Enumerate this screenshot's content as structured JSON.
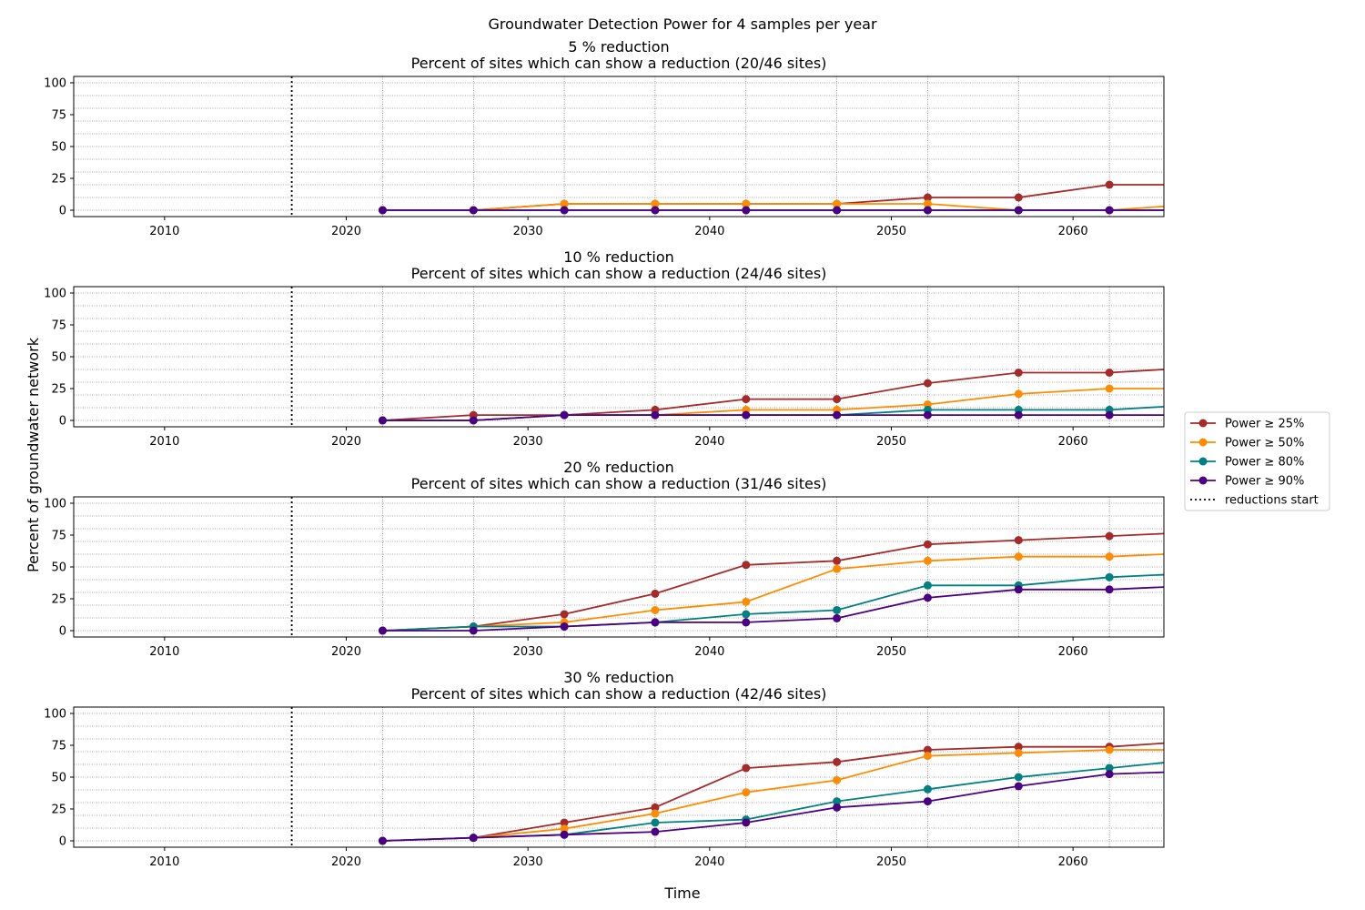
{
  "chart_data": {
    "type": "line",
    "title": "Groundwater Detection Power for 4 samples per year",
    "xlabel": "Time",
    "ylabel": "Percent of groundwater network",
    "xlim": [
      2005,
      2065
    ],
    "ylim": [
      -5,
      105
    ],
    "xticks": [
      2010,
      2020,
      2030,
      2040,
      2050,
      2060
    ],
    "yticks": [
      0,
      25,
      50,
      75,
      100
    ],
    "grid": true,
    "legend_placement": "center-right",
    "reductions_start": 2017,
    "x": [
      2022,
      2027,
      2032,
      2037,
      2042,
      2047,
      2052,
      2057,
      2062,
      2067
    ],
    "series_styles": [
      {
        "key": "p25",
        "name": "Power ≥ 25%",
        "color": "#a52a2a"
      },
      {
        "key": "p50",
        "name": "Power ≥ 50%",
        "color": "#ff8c00"
      },
      {
        "key": "p80",
        "name": "Power ≥ 80%",
        "color": "#008080"
      },
      {
        "key": "p90",
        "name": "Power ≥ 90%",
        "color": "#4b0082"
      }
    ],
    "reductions_legend": "reductions start",
    "panels": [
      {
        "title": "5 % reduction",
        "subtitle": "Percent of sites which can show a reduction (20/46 sites)",
        "series": {
          "p25": [
            0,
            0,
            5,
            5,
            5,
            5,
            10,
            10,
            20,
            20
          ],
          "p50": [
            0,
            0,
            5,
            5,
            5,
            5,
            5,
            0,
            0,
            5
          ],
          "p80": [
            0,
            0,
            0,
            0,
            0,
            0,
            0,
            0,
            0,
            0
          ],
          "p90": [
            0,
            0,
            0,
            0,
            0,
            0,
            0,
            0,
            0,
            0
          ]
        }
      },
      {
        "title": "10 % reduction",
        "subtitle": "Percent of sites which can show a reduction (24/46 sites)",
        "series": {
          "p25": [
            0,
            4.2,
            4.2,
            8.3,
            16.7,
            16.7,
            29.2,
            37.5,
            37.5,
            41.7
          ],
          "p50": [
            0,
            0,
            4.2,
            4.2,
            8.3,
            8.3,
            12.5,
            20.8,
            25,
            25
          ],
          "p80": [
            0,
            0,
            4.2,
            4.2,
            4.2,
            4.2,
            8.3,
            8.3,
            8.3,
            12.5
          ],
          "p90": [
            0,
            0,
            4.2,
            4.2,
            4.2,
            4.2,
            4.2,
            4.2,
            4.2,
            4.2
          ]
        }
      },
      {
        "title": "20 % reduction",
        "subtitle": "Percent of sites which can show a reduction (31/46 sites)",
        "series": {
          "p25": [
            0,
            3.2,
            12.9,
            29,
            51.6,
            54.8,
            67.7,
            71,
            74.2,
            77.4
          ],
          "p50": [
            0,
            3.2,
            6.5,
            16.1,
            22.6,
            48.4,
            54.8,
            58.1,
            58.1,
            61.3
          ],
          "p80": [
            0,
            3.2,
            3.2,
            6.5,
            12.9,
            16.1,
            35.5,
            35.5,
            41.9,
            45.2
          ],
          "p90": [
            0,
            0,
            3.2,
            6.5,
            6.5,
            9.7,
            25.8,
            32.3,
            32.3,
            35.5
          ]
        }
      },
      {
        "title": "30 % reduction",
        "subtitle": "Percent of sites which can show a reduction (42/46 sites)",
        "series": {
          "p25": [
            0,
            2.4,
            14.3,
            26.2,
            57.1,
            61.9,
            71.4,
            73.8,
            73.8,
            78.6
          ],
          "p50": [
            0,
            2.4,
            9.5,
            21.4,
            38.1,
            47.6,
            66.7,
            69,
            71.4,
            71.4
          ],
          "p80": [
            0,
            2.4,
            4.8,
            14.3,
            16.7,
            31,
            40.5,
            50,
            57.1,
            64.3
          ],
          "p90": [
            0,
            2.4,
            4.8,
            7.1,
            14.3,
            26.2,
            31,
            42.9,
            52.4,
            54.8
          ]
        }
      }
    ]
  }
}
